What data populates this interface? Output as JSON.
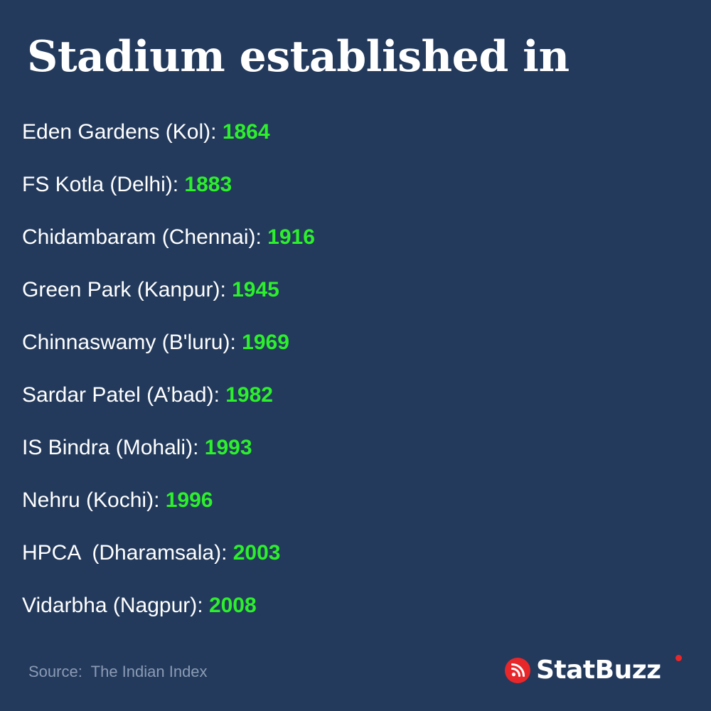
{
  "title": "Stadium established in",
  "stadiums": [
    {
      "name": "Eden Gardens (Kol): ",
      "year": "1864"
    },
    {
      "name": "FS Kotla (Delhi): ",
      "year": "1883"
    },
    {
      "name": "Chidambaram (Chennai): ",
      "year": "1916"
    },
    {
      "name": "Green Park (Kanpur): ",
      "year": "1945"
    },
    {
      "name": "Chinnaswamy (B'luru): ",
      "year": "1969"
    },
    {
      "name": "Sardar Patel (A’bad): ",
      "year": "1982"
    },
    {
      "name": "IS Bindra (Mohali): ",
      "year": "1993"
    },
    {
      "name": "Nehru (Kochi): ",
      "year": "1996"
    },
    {
      "name": "HPCA  (Dharamsala): ",
      "year": "2003"
    },
    {
      "name": "Vidarbha (Nagpur): ",
      "year": "2008"
    }
  ],
  "source": "Source:  The Indian Index",
  "brand": {
    "name": "StatBuzz",
    "icon": "rss-feed-icon",
    "accent_color": "#e8272a",
    "year_color": "#2cf02c",
    "background_color": "#233a5c"
  }
}
